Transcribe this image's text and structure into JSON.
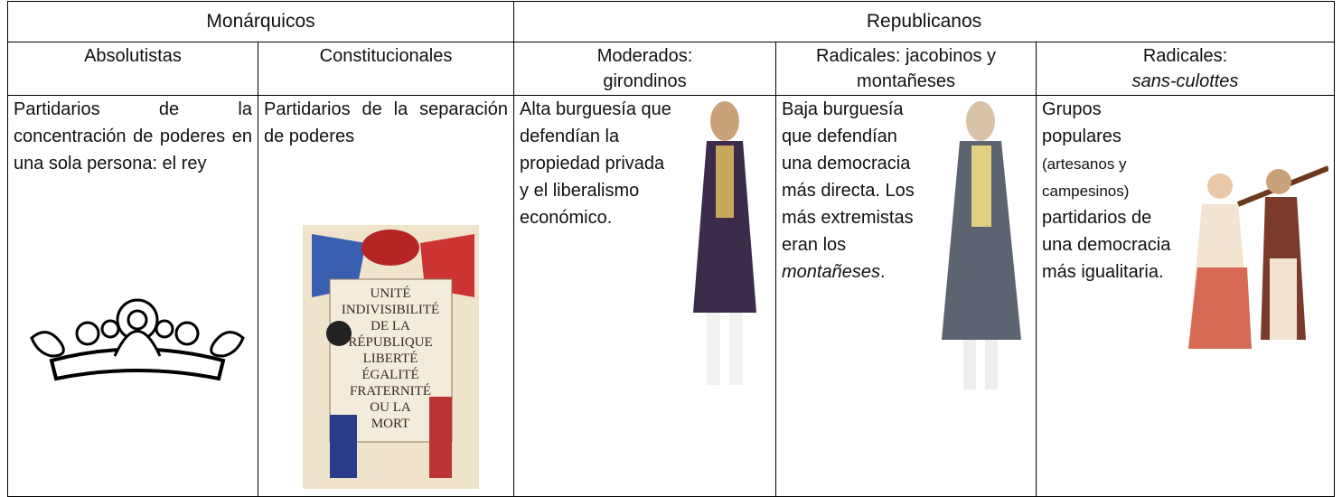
{
  "table": {
    "groups": [
      "Monárquicos",
      "Republicanos"
    ],
    "subheaders": [
      [
        "Absolutistas"
      ],
      [
        "Constitucionales"
      ],
      [
        "Moderados:",
        "girondinos"
      ],
      [
        "Radicales: jacobinos y",
        "montañeses"
      ],
      [
        "Radicales:",
        "sans-culottes"
      ]
    ],
    "cells": [
      [
        "Partidarios de la concentración de poderes en una sola persona: el rey"
      ],
      [
        "Partidarios de la separación de poderes"
      ],
      [
        "Alta burguesía que defendían la propiedad privada y el liberalismo económico."
      ],
      [
        "Baja burguesía que defendían una democracia más directa. Los más extremistas eran los ",
        "montañeses",
        "."
      ],
      [
        "Grupos populares",
        "(artesanos y campesinos)",
        "partidarios de una democracia más igualitaria."
      ]
    ],
    "poster": [
      "UNITÉ",
      "INDIVISIBILITÉ",
      "DE LA",
      "RÉPUBLIQUE",
      "LIBERTÉ",
      "ÉGALITÉ",
      "FRATERNITÉ",
      "OU LA",
      "MORT"
    ]
  }
}
